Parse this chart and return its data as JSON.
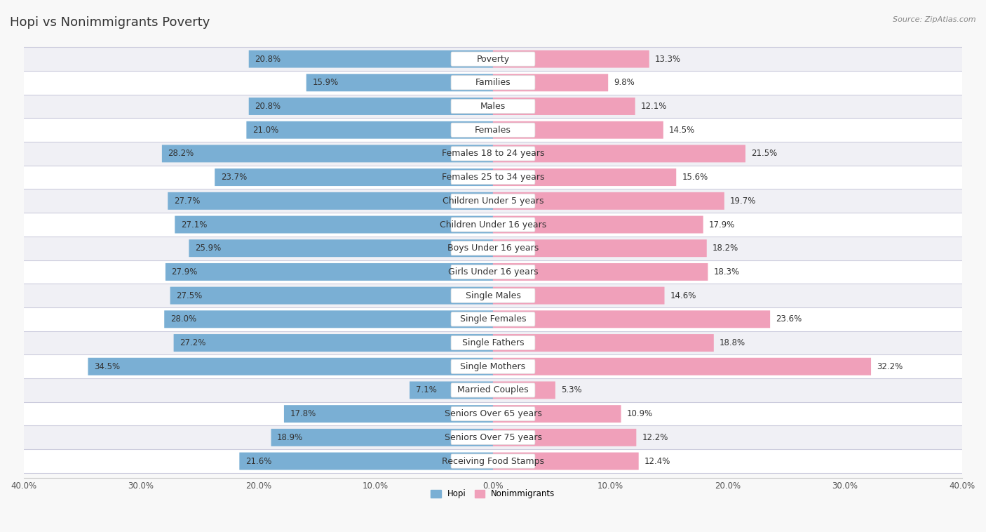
{
  "title": "Hopi vs Nonimmigrants Poverty",
  "source": "Source: ZipAtlas.com",
  "categories": [
    "Poverty",
    "Families",
    "Males",
    "Females",
    "Females 18 to 24 years",
    "Females 25 to 34 years",
    "Children Under 5 years",
    "Children Under 16 years",
    "Boys Under 16 years",
    "Girls Under 16 years",
    "Single Males",
    "Single Females",
    "Single Fathers",
    "Single Mothers",
    "Married Couples",
    "Seniors Over 65 years",
    "Seniors Over 75 years",
    "Receiving Food Stamps"
  ],
  "hopi_values": [
    20.8,
    15.9,
    20.8,
    21.0,
    28.2,
    23.7,
    27.7,
    27.1,
    25.9,
    27.9,
    27.5,
    28.0,
    27.2,
    34.5,
    7.1,
    17.8,
    18.9,
    21.6
  ],
  "nonimmigrant_values": [
    13.3,
    9.8,
    12.1,
    14.5,
    21.5,
    15.6,
    19.7,
    17.9,
    18.2,
    18.3,
    14.6,
    23.6,
    18.8,
    32.2,
    5.3,
    10.9,
    12.2,
    12.4
  ],
  "hopi_color": "#7aafd4",
  "nonimmigrant_color": "#f0a0ba",
  "axis_max": 40.0,
  "row_bg_even": "#f0f0f5",
  "row_bg_odd": "#ffffff",
  "separator_color": "#ccccdd",
  "title_fontsize": 13,
  "label_fontsize": 9,
  "value_fontsize": 8.5,
  "tick_fontsize": 8.5
}
